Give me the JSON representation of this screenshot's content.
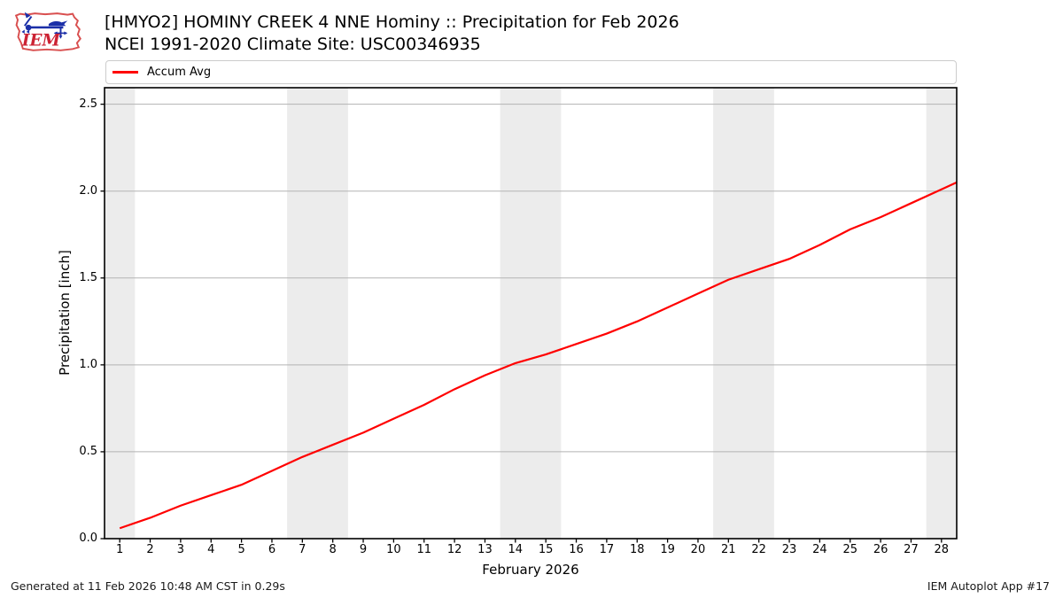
{
  "header": {
    "title_line1": "[HMYO2] HOMINY CREEK 4 NNE Hominy :: Precipitation for Feb 2026",
    "title_line2": "NCEI 1991-2020 Climate Site: USC00346935",
    "logo_text": "IEM"
  },
  "legend": {
    "items": [
      {
        "label": "Accum Avg",
        "color": "#ff0000"
      }
    ]
  },
  "footer": {
    "generated": "Generated at 11 Feb 2026 10:48 AM CST in 0.29s",
    "app": "IEM Autoplot App #17"
  },
  "colors": {
    "accent": "#ff0000",
    "weekend_band": "#ececec",
    "gridline": "#b3b3b3",
    "spine": "#000000",
    "logo_red": "#d94f4f",
    "logo_blue": "#1b2fa8"
  },
  "chart_data": {
    "type": "line",
    "title": "[HMYO2] HOMINY CREEK 4 NNE Hominy :: Precipitation for Feb 2026",
    "subtitle": "NCEI 1991-2020 Climate Site: USC00346935",
    "xlabel": "February 2026",
    "ylabel": "Precipitation [inch]",
    "xlim": [
      0.5,
      28.5
    ],
    "ylim": [
      0,
      2.595
    ],
    "x_ticks": [
      1,
      2,
      3,
      4,
      5,
      6,
      7,
      8,
      9,
      10,
      11,
      12,
      13,
      14,
      15,
      16,
      17,
      18,
      19,
      20,
      21,
      22,
      23,
      24,
      25,
      26,
      27,
      28
    ],
    "y_ticks": [
      0.0,
      0.5,
      1.0,
      1.5,
      2.0,
      2.5
    ],
    "grid": "horizontal",
    "legend_position": "top",
    "weekend_bands": [
      [
        0.5,
        1.5
      ],
      [
        6.5,
        8.5
      ],
      [
        13.5,
        15.5
      ],
      [
        20.5,
        22.5
      ],
      [
        27.5,
        28.5
      ]
    ],
    "series": [
      {
        "name": "Accum Avg",
        "color": "#ff0000",
        "x": [
          1,
          2,
          3,
          4,
          5,
          6,
          7,
          8,
          9,
          10,
          11,
          12,
          13,
          14,
          15,
          16,
          17,
          18,
          19,
          20,
          21,
          22,
          23,
          24,
          25,
          26,
          27,
          28,
          28.5
        ],
        "values": [
          0.06,
          0.12,
          0.19,
          0.25,
          0.31,
          0.39,
          0.47,
          0.54,
          0.61,
          0.69,
          0.77,
          0.86,
          0.94,
          1.01,
          1.06,
          1.12,
          1.18,
          1.25,
          1.33,
          1.41,
          1.49,
          1.55,
          1.61,
          1.69,
          1.78,
          1.85,
          1.93,
          2.01,
          2.05
        ]
      }
    ]
  }
}
